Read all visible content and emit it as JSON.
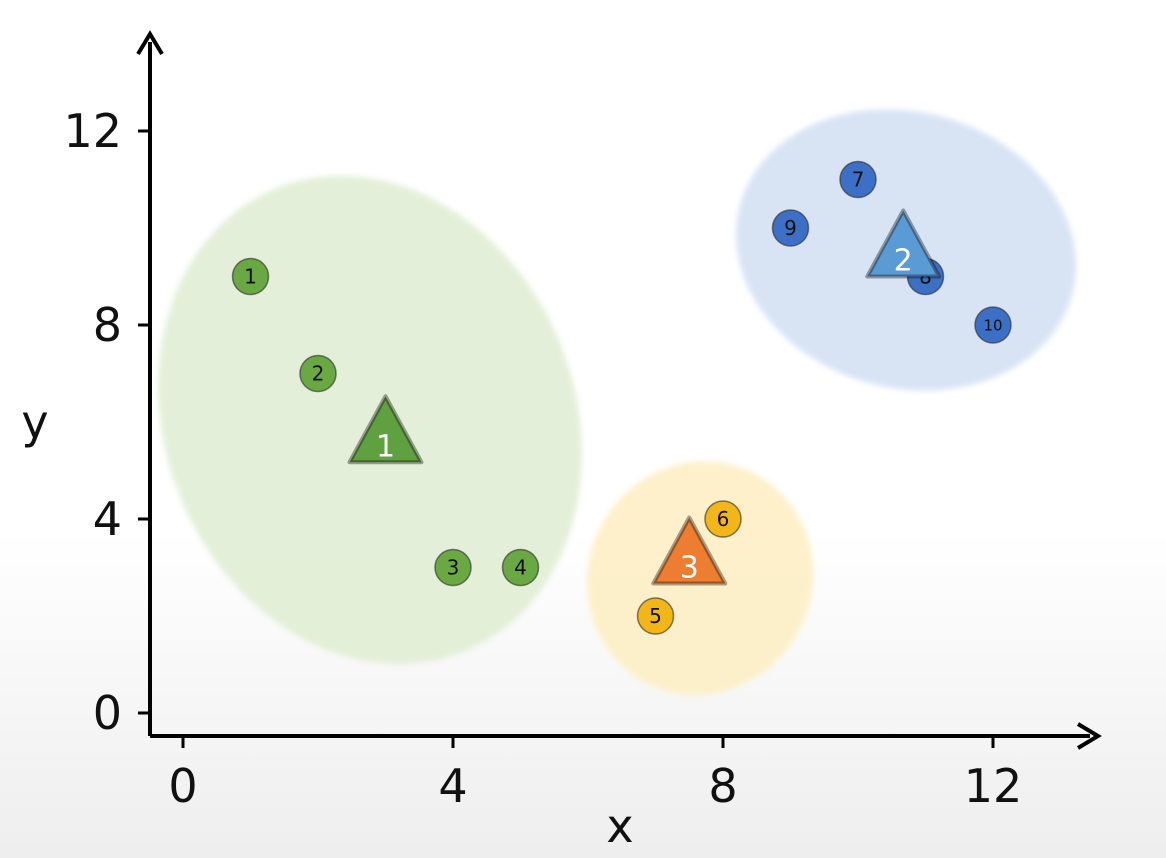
{
  "chart_data": {
    "type": "scatter",
    "title": "",
    "xlabel": "x",
    "ylabel": "y",
    "xlim": [
      0,
      12
    ],
    "ylim": [
      0,
      12
    ],
    "xticks": [
      "0",
      "4",
      "8",
      "12"
    ],
    "yticks": [
      "0",
      "4",
      "8",
      "12"
    ],
    "grid": false,
    "clusters": [
      {
        "color": "#6aa843",
        "region_color": "#e2efd6",
        "points": [
          {
            "label": "1",
            "x": 1,
            "y": 9
          },
          {
            "label": "2",
            "x": 2,
            "y": 7
          },
          {
            "label": "3",
            "x": 4,
            "y": 3
          },
          {
            "label": "4",
            "x": 5,
            "y": 3
          }
        ],
        "centroid": {
          "label": "1",
          "x": 3,
          "y": 5.5,
          "color": "#5fa040"
        }
      },
      {
        "color": "#3c6fc6",
        "region_color": "#d6e2f4",
        "points": [
          {
            "label": "7",
            "x": 10,
            "y": 11
          },
          {
            "label": "9",
            "x": 9,
            "y": 10
          },
          {
            "label": "8",
            "x": 11,
            "y": 9
          },
          {
            "label": "10",
            "x": 12,
            "y": 8
          }
        ],
        "centroid": {
          "label": "2",
          "x": 10.67,
          "y": 9.33,
          "color": "#5b9bd5"
        }
      },
      {
        "color": "#f2b619",
        "region_color": "#fdf0c8",
        "points": [
          {
            "label": "6",
            "x": 8,
            "y": 4
          },
          {
            "label": "5",
            "x": 7,
            "y": 2
          }
        ],
        "centroid": {
          "label": "3",
          "x": 7.5,
          "y": 3,
          "color": "#ed7d31"
        }
      }
    ]
  }
}
